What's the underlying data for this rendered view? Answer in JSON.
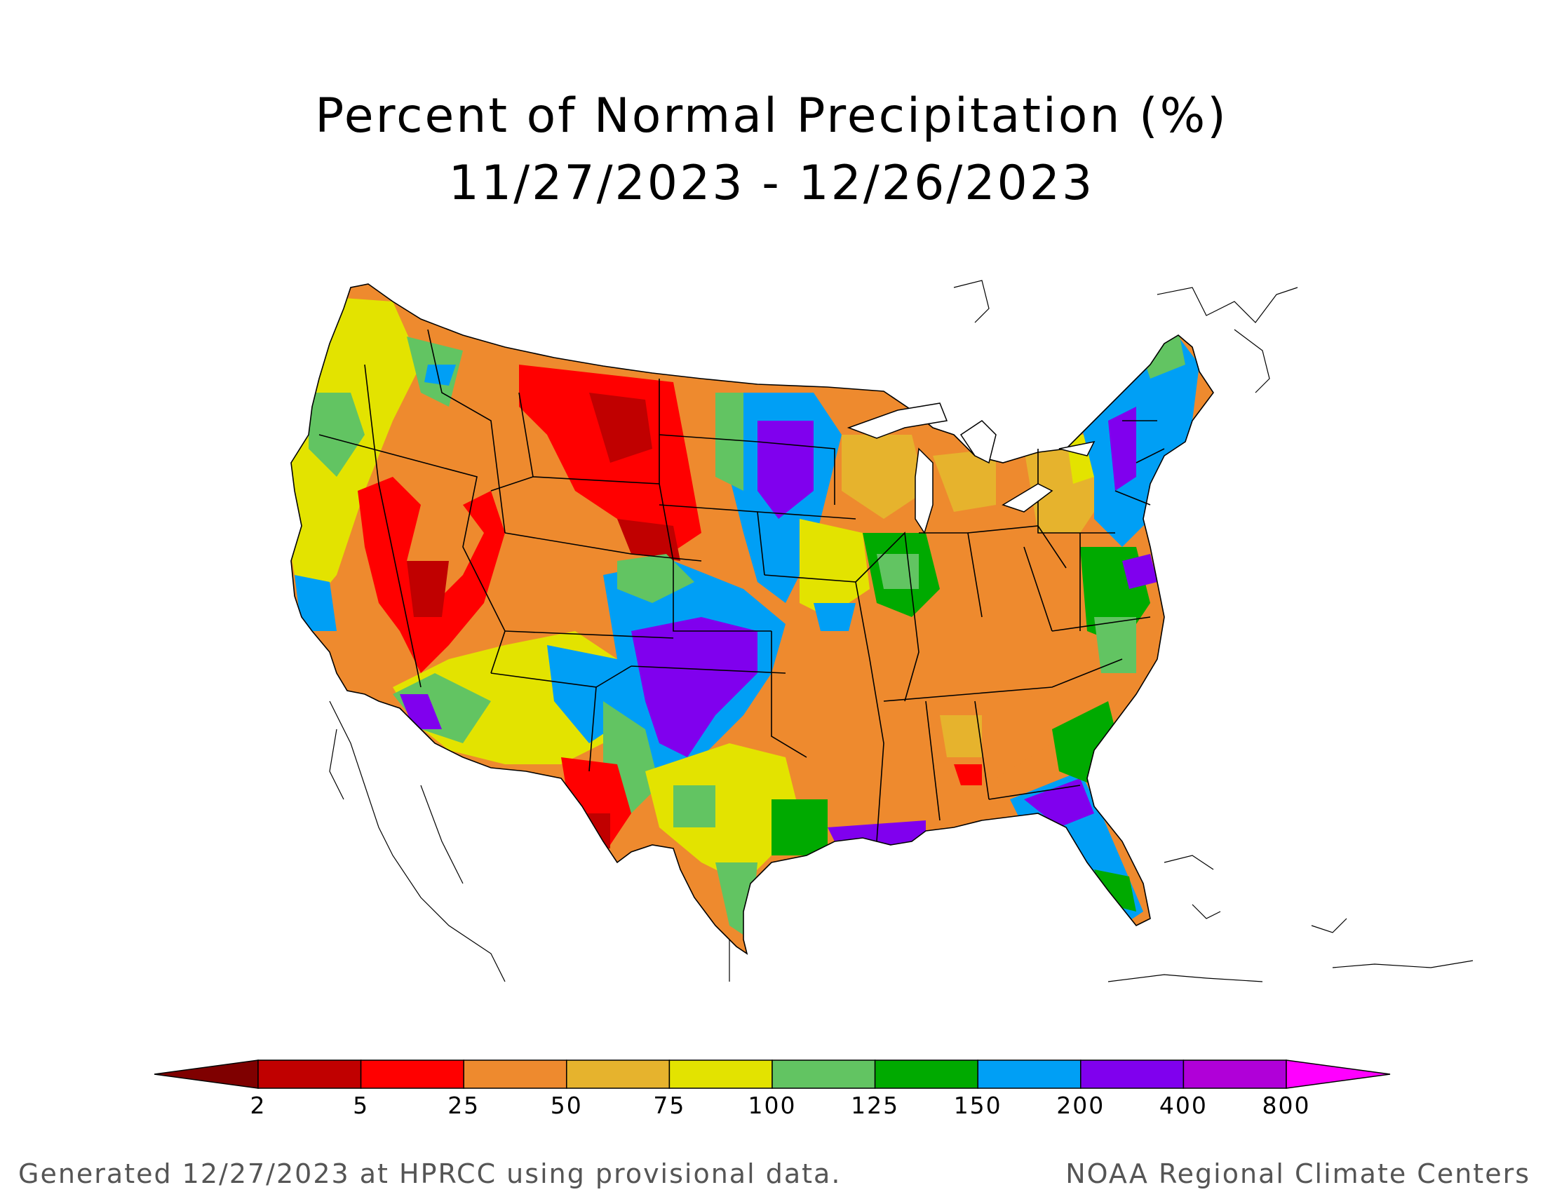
{
  "title": {
    "line1": "Percent of Normal Precipitation (%)",
    "line2": "11/27/2023 - 12/26/2023"
  },
  "legend": {
    "ticks": [
      "2",
      "5",
      "25",
      "50",
      "75",
      "100",
      "125",
      "150",
      "200",
      "400",
      "800"
    ],
    "colors": [
      "#7f0000",
      "#c00000",
      "#ff0000",
      "#ee8a2e",
      "#e6b32d",
      "#e3e300",
      "#62c462",
      "#00aa00",
      "#009ff5",
      "#8000ee",
      "#b000d8",
      "#ff00ff"
    ]
  },
  "map": {
    "regions": [
      {
        "name": "pacific-northwest",
        "category": "75-100"
      },
      {
        "name": "northern-rockies-plains",
        "category": "5-25"
      },
      {
        "name": "great-basin",
        "category": "5-25"
      },
      {
        "name": "southern-plains",
        "category": "200-400"
      },
      {
        "name": "upper-midwest",
        "category": "200-400"
      },
      {
        "name": "great-lakes",
        "category": "50-75"
      },
      {
        "name": "southeast",
        "category": "50-75"
      },
      {
        "name": "northeast",
        "category": "150-200"
      },
      {
        "name": "florida",
        "category": "200-400"
      },
      {
        "name": "west-texas",
        "category": "5-25"
      }
    ]
  },
  "footer": {
    "left": "Generated 12/27/2023 at HPRCC using provisional data.",
    "right": "NOAA Regional Climate Centers"
  }
}
